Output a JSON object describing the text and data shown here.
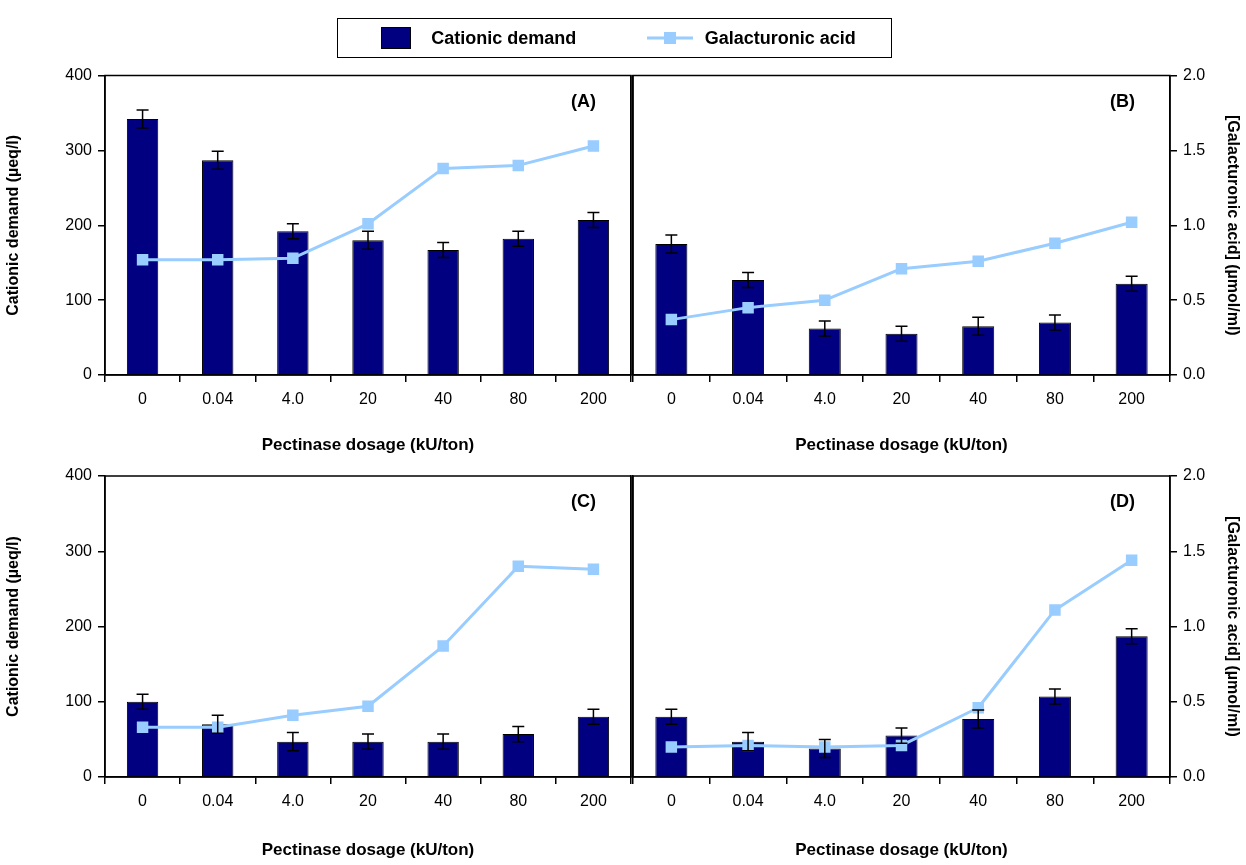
{
  "chart_data": [
    {
      "type": "bar",
      "categories": [
        "0",
        "0.04",
        "4.0",
        "20",
        "40",
        "80",
        "200"
      ],
      "xlabel": "Pectinase dosage (kU/ton)",
      "ylabel": "Cationic demand (µeq/l)",
      "ylim": [
        0,
        400
      ],
      "yticks": [
        0,
        100,
        200,
        300,
        400
      ],
      "y2lim": [
        0,
        2
      ],
      "tick_labels": "xy",
      "legend": "top",
      "marker": "square",
      "annotations": [
        "(A)"
      ],
      "series": [
        {
          "name": "Cationic demand",
          "color": "#000080",
          "values": [
            342,
            287,
            192,
            180,
            167,
            182,
            207
          ],
          "errors": [
            12,
            12,
            10,
            12,
            10,
            10,
            10
          ]
        },
        {
          "name": "Galacturonic acid",
          "type": "line",
          "axis": "y2",
          "color": "#99ccff",
          "values": [
            0.77,
            0.77,
            0.78,
            1.01,
            1.38,
            1.4,
            1.53
          ]
        }
      ]
    },
    {
      "type": "bar",
      "categories": [
        "0",
        "0.04",
        "4.0",
        "20",
        "40",
        "80",
        "200"
      ],
      "xlabel": "Pectinase dosage (kU/ton)",
      "y2label": "[Galacturonic acid] (µmol/ml)",
      "ylim": [
        0,
        400
      ],
      "y2lim": [
        0,
        2
      ],
      "y2ticks": [
        {
          "value": 0,
          "label": "0.0"
        },
        {
          "value": 0.5,
          "label": "0.5"
        },
        {
          "value": 1,
          "label": "1.0"
        },
        {
          "value": 1.5,
          "label": "1.5"
        },
        {
          "value": 2,
          "label": "2.0"
        }
      ],
      "tick_labels": "xy2",
      "marker": "square",
      "annotations": [
        "(B)"
      ],
      "series": [
        {
          "color": "#000080",
          "values": [
            175,
            127,
            62,
            55,
            65,
            70,
            122
          ],
          "errors": [
            12,
            10,
            10,
            10,
            12,
            10,
            10
          ]
        },
        {
          "type": "line",
          "axis": "y2",
          "color": "#99ccff",
          "values": [
            0.37,
            0.45,
            0.5,
            0.71,
            0.76,
            0.88,
            1.02
          ]
        }
      ]
    },
    {
      "type": "bar",
      "categories": [
        "0",
        "0.04",
        "4.0",
        "20",
        "40",
        "80",
        "200"
      ],
      "xlabel": "Pectinase dosage (kU/ton)",
      "ylabel": "Cationic demand (µeq/l)",
      "ylim": [
        0,
        400
      ],
      "yticks": [
        0,
        100,
        200,
        300,
        400
      ],
      "y2lim": [
        0,
        2
      ],
      "tick_labels": "xy",
      "marker": "square",
      "annotations": [
        "(C)"
      ],
      "series": [
        {
          "color": "#000080",
          "values": [
            100,
            70,
            47,
            47,
            47,
            57,
            80
          ],
          "errors": [
            10,
            12,
            12,
            10,
            10,
            10,
            10
          ]
        },
        {
          "type": "line",
          "axis": "y2",
          "color": "#99ccff",
          "values": [
            0.33,
            0.33,
            0.41,
            0.47,
            0.87,
            1.4,
            1.38
          ]
        }
      ]
    },
    {
      "type": "bar",
      "categories": [
        "0",
        "0.04",
        "4.0",
        "20",
        "40",
        "80",
        "200"
      ],
      "xlabel": "Pectinase dosage (kU/ton)",
      "y2label": "[Galacturonic acid] (µmol/ml)",
      "ylim": [
        0,
        400
      ],
      "y2lim": [
        0,
        2
      ],
      "y2ticks": [
        {
          "value": 0,
          "label": "0.0"
        },
        {
          "value": 0.5,
          "label": "0.5"
        },
        {
          "value": 1,
          "label": "1.0"
        },
        {
          "value": 1.5,
          "label": "1.5"
        },
        {
          "value": 2,
          "label": "2.0"
        }
      ],
      "tick_labels": "xy2",
      "marker": "square",
      "annotations": [
        "(D)"
      ],
      "series": [
        {
          "color": "#000080",
          "values": [
            80,
            47,
            38,
            55,
            77,
            107,
            187
          ],
          "errors": [
            10,
            12,
            12,
            10,
            12,
            10,
            10
          ]
        },
        {
          "type": "line",
          "axis": "y2",
          "color": "#99ccff",
          "values": [
            0.2,
            0.21,
            0.2,
            0.21,
            0.46,
            1.11,
            1.44
          ]
        }
      ]
    }
  ]
}
